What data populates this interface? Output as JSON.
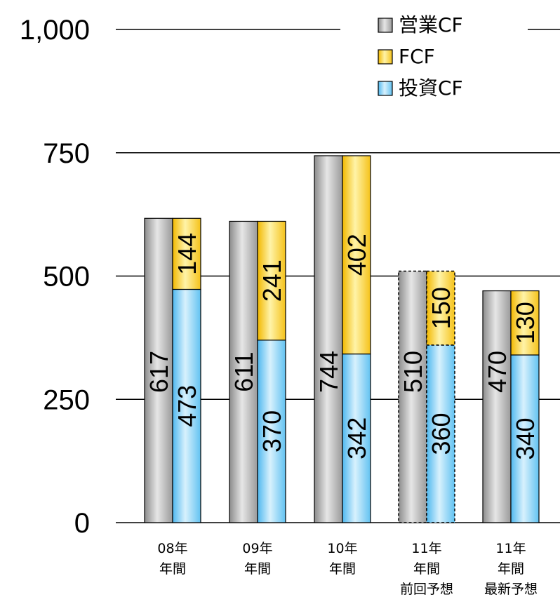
{
  "chart_data": {
    "type": "bar",
    "title": "",
    "xlabel": "",
    "ylabel": "",
    "ylim": [
      0,
      1000
    ],
    "yticks": [
      "0",
      "250",
      "500",
      "750",
      "1,000"
    ],
    "ytick_values": [
      0,
      250,
      500,
      750,
      1000
    ],
    "grid": true,
    "legend_position": "top-right",
    "categories": [
      [
        "08年",
        "年間"
      ],
      [
        "09年",
        "年間"
      ],
      [
        "10年",
        "年間"
      ],
      [
        "11年",
        "年間",
        "前回予想"
      ],
      [
        "11年",
        "年間",
        "最新予想"
      ]
    ],
    "series": [
      {
        "name": "営業CF",
        "color": "#b8b8b8",
        "values": [
          617,
          611,
          744,
          510,
          470
        ]
      },
      {
        "name": "FCF",
        "color": "#ffd84a",
        "values": [
          144,
          241,
          402,
          150,
          130
        ]
      },
      {
        "name": "投資CF",
        "color": "#8fd3f7",
        "values": [
          473,
          370,
          342,
          360,
          340
        ]
      }
    ],
    "dashed_categories": [
      3
    ]
  }
}
